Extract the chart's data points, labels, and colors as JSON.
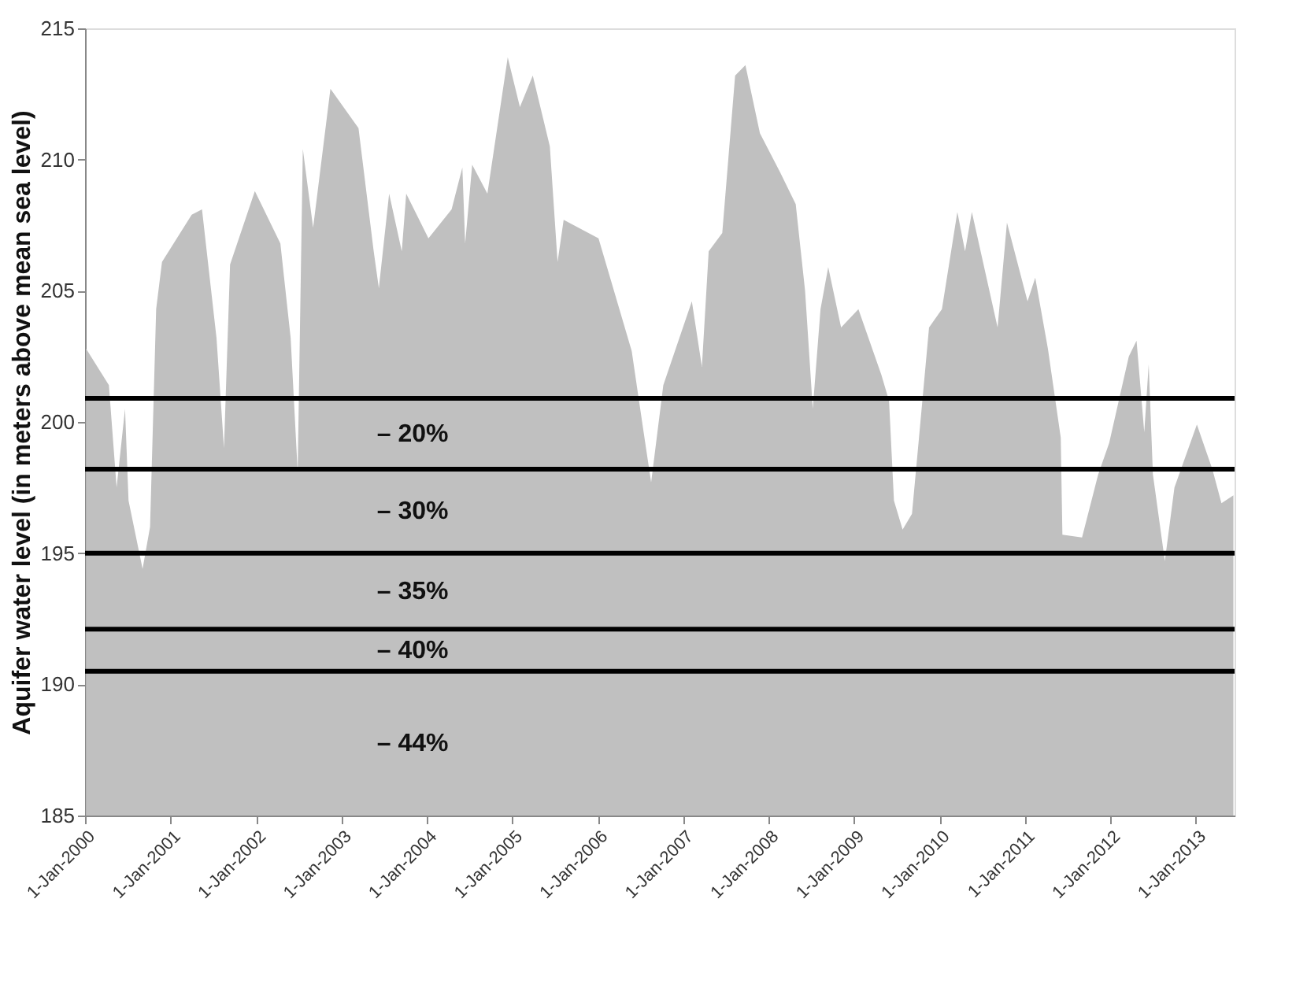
{
  "chart_data": {
    "type": "area",
    "ylabel": "Aquifer water level (in meters above mean sea level)",
    "x": [
      "2000-01-05",
      "2000-04-12",
      "2000-05-15",
      "2000-06-20",
      "2000-07-05",
      "2000-09-03",
      "2000-10-05",
      "2000-10-31",
      "2000-11-25",
      "2001-04-01",
      "2001-05-15",
      "2001-07-16",
      "2001-08-17",
      "2001-09-12",
      "2001-12-27",
      "2002-04-15",
      "2002-05-29",
      "2002-06-28",
      "2002-07-20",
      "2002-09-02",
      "2002-11-15",
      "2003-03-15",
      "2003-05-19",
      "2003-06-10",
      "2003-07-24",
      "2003-09-16",
      "2003-10-05",
      "2004-01-08",
      "2004-04-16",
      "2004-06-01",
      "2004-06-13",
      "2004-07-13",
      "2004-09-16",
      "2004-12-12",
      "2005-02-02",
      "2005-03-29",
      "2005-06-10",
      "2005-07-13",
      "2005-08-08",
      "2006-01-04",
      "2006-03-11",
      "2006-05-26",
      "2006-07-16",
      "2006-08-17",
      "2006-10-08",
      "2007-02-07",
      "2007-03-22",
      "2007-04-20",
      "2007-06-17",
      "2007-08-11",
      "2007-09-24",
      "2007-11-25",
      "2008-02-20",
      "2008-04-26",
      "2008-06-05",
      "2008-07-08",
      "2008-08-10",
      "2008-09-12",
      "2008-11-06",
      "2009-01-19",
      "2009-04-27",
      "2009-05-30",
      "2009-06-20",
      "2009-07-27",
      "2009-09-05",
      "2009-10-05",
      "2009-11-17",
      "2010-01-11",
      "2010-03-18",
      "2010-04-20",
      "2010-05-19",
      "2010-09-06",
      "2010-10-16",
      "2011-01-12",
      "2011-02-14",
      "2011-04-09",
      "2011-06-03",
      "2011-06-10",
      "2011-09-02",
      "2011-11-10",
      "2011-12-27",
      "2012-03-20",
      "2012-04-22",
      "2012-05-25",
      "2012-06-13",
      "2012-07-01",
      "2012-08-21",
      "2012-10-01",
      "2013-01-05",
      "2013-03-12",
      "2013-04-20",
      "2013-06-10"
    ],
    "series": [
      {
        "color": "#c0c0c0",
        "values": [
          202.8,
          201.4,
          197.5,
          200.5,
          197,
          194.4,
          196,
          204.3,
          206.1,
          207.9,
          208.1,
          203.2,
          199.0,
          206.0,
          208.8,
          206.8,
          203.2,
          198.1,
          210.4,
          207.4,
          212.7,
          211.2,
          206.5,
          205.1,
          208.7,
          206.5,
          208.7,
          207.0,
          208.1,
          209.7,
          206.8,
          209.8,
          208.7,
          213.9,
          212.0,
          213.2,
          210.5,
          206.1,
          207.7,
          207.0,
          205.0,
          202.7,
          199.6,
          197.7,
          201.4,
          204.6,
          202.1,
          206.5,
          207.2,
          213.2,
          213.6,
          211.0,
          209.5,
          208.3,
          205.0,
          200.5,
          204.3,
          205.9,
          203.6,
          204.3,
          201.8,
          200.8,
          197,
          195.9,
          196.5,
          199.4,
          203.6,
          204.3,
          208.0,
          206.5,
          208.0,
          203.6,
          207.6,
          204.6,
          205.5,
          202.8,
          199.4,
          195.7,
          195.6,
          198,
          199.2,
          202.5,
          203.1,
          199.6,
          202.2,
          198,
          194.7,
          197.5,
          199.9,
          198.2,
          196.9,
          197.2
        ]
      }
    ],
    "xlim": [
      "2000-01-01",
      "2013-06-15"
    ],
    "xticks": [
      {
        "value": "2000-01-01",
        "label": "1-Jan-2000"
      },
      {
        "value": "2001-01-01",
        "label": "1-Jan-2001"
      },
      {
        "value": "2002-01-01",
        "label": "1-Jan-2002"
      },
      {
        "value": "2003-01-01",
        "label": "1-Jan-2003"
      },
      {
        "value": "2004-01-01",
        "label": "1-Jan-2004"
      },
      {
        "value": "2005-01-01",
        "label": "1-Jan-2005"
      },
      {
        "value": "2006-01-01",
        "label": "1-Jan-2006"
      },
      {
        "value": "2007-01-01",
        "label": "1-Jan-2007"
      },
      {
        "value": "2008-01-01",
        "label": "1-Jan-2008"
      },
      {
        "value": "2009-01-01",
        "label": "1-Jan-2009"
      },
      {
        "value": "2010-01-01",
        "label": "1-Jan-2010"
      },
      {
        "value": "2011-01-01",
        "label": "1-Jan-2011"
      },
      {
        "value": "2012-01-01",
        "label": "1-Jan-2012"
      },
      {
        "value": "2013-01-01",
        "label": "1-Jan-2013"
      }
    ],
    "ylim": [
      185,
      215
    ],
    "yticks": [
      185,
      190,
      195,
      200,
      205,
      210,
      215
    ],
    "grid": false,
    "ref_lines": [
      {
        "axis": "y",
        "value": 200.9,
        "label": "– 20%",
        "color": "#000000"
      },
      {
        "axis": "y",
        "value": 198.2,
        "label": "– 30%",
        "color": "#000000"
      },
      {
        "axis": "y",
        "value": 195.0,
        "label": "– 35%",
        "color": "#000000"
      },
      {
        "axis": "y",
        "value": 192.1,
        "label": "– 40%",
        "color": "#000000"
      },
      {
        "axis": "y",
        "value": 190.5,
        "label": "– 44%",
        "color": "#000000"
      }
    ]
  }
}
